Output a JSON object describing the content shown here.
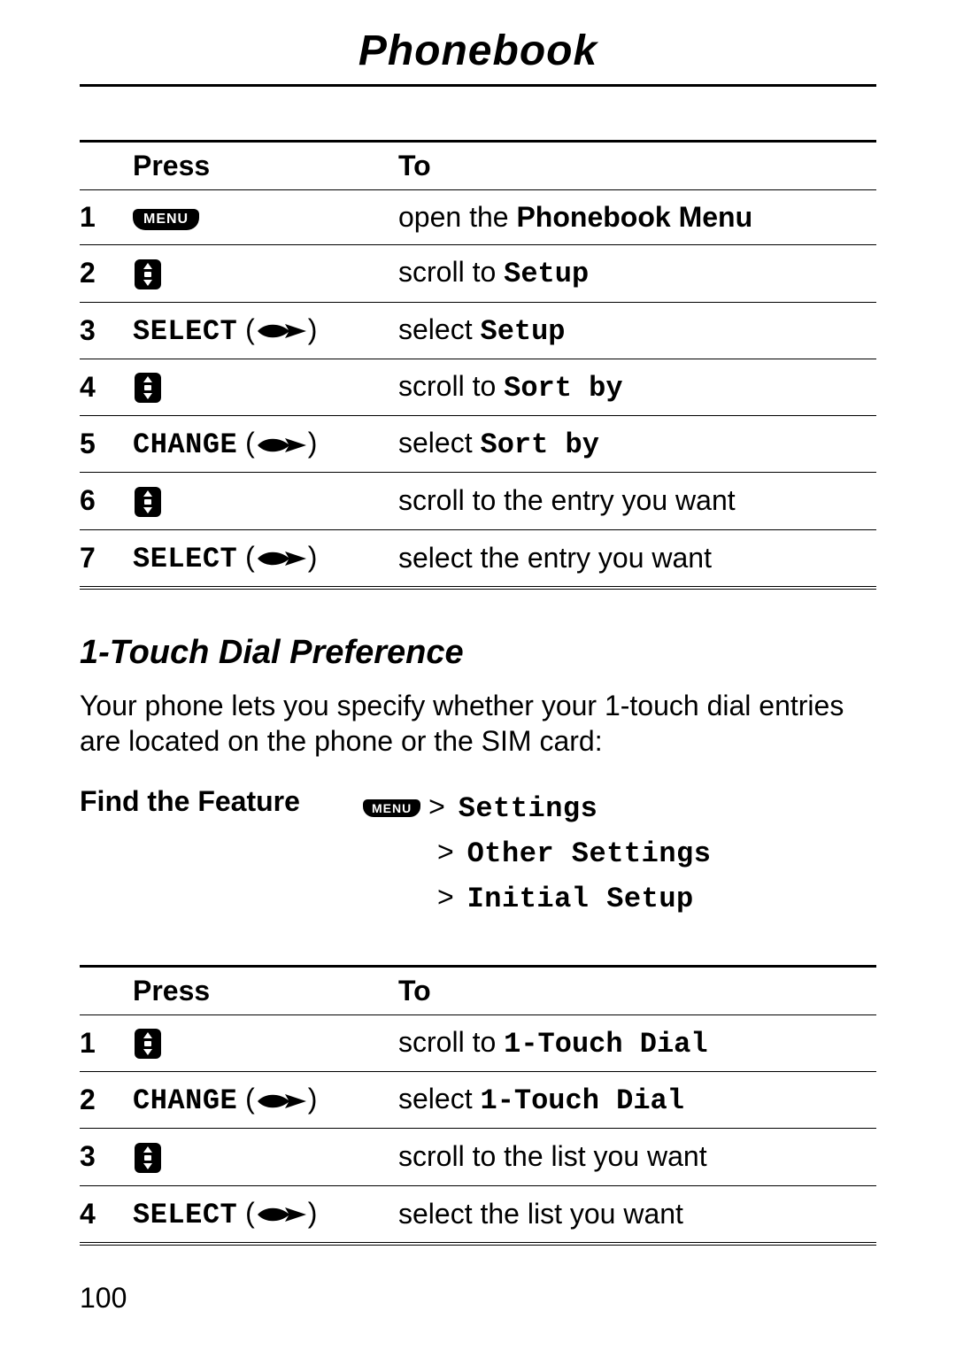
{
  "page_title": "Phonebook",
  "page_number": "100",
  "colors": {
    "text": "#000000",
    "bg": "#ffffff",
    "rule": "#000000"
  },
  "table1": {
    "headers": {
      "press": "Press",
      "to": "To"
    },
    "rows": [
      {
        "n": "1",
        "press_type": "menu",
        "press_label": "MENU",
        "to_prefix": "open the ",
        "to_bold": "Phonebook Menu",
        "to_suffix": ""
      },
      {
        "n": "2",
        "press_type": "scroll",
        "to_prefix": "scroll to ",
        "to_mono": "Setup",
        "to_suffix": ""
      },
      {
        "n": "3",
        "press_type": "soft",
        "press_word": "SELECT",
        "to_prefix": "select ",
        "to_mono": "Setup",
        "to_suffix": ""
      },
      {
        "n": "4",
        "press_type": "scroll",
        "to_prefix": "scroll to ",
        "to_mono": "Sort by",
        "to_suffix": ""
      },
      {
        "n": "5",
        "press_type": "soft",
        "press_word": "CHANGE",
        "to_prefix": "select ",
        "to_mono": "Sort by",
        "to_suffix": ""
      },
      {
        "n": "6",
        "press_type": "scroll",
        "to_prefix": "scroll to the entry you want",
        "to_mono": "",
        "to_suffix": ""
      },
      {
        "n": "7",
        "press_type": "soft",
        "press_word": "SELECT",
        "to_prefix": "select the entry you want",
        "to_mono": "",
        "to_suffix": ""
      }
    ]
  },
  "section_heading": "1-Touch Dial Preference",
  "body_text": "Your phone lets you specify whether your 1-touch dial entries are located on the phone or the SIM card:",
  "find_feature": {
    "label": "Find the Feature",
    "menu_label": "MENU",
    "crumbs": [
      "Settings",
      "Other Settings",
      "Initial Setup"
    ]
  },
  "table2": {
    "headers": {
      "press": "Press",
      "to": "To"
    },
    "rows": [
      {
        "n": "1",
        "press_type": "scroll",
        "to_prefix": "scroll to ",
        "to_mono": "1-Touch Dial",
        "to_suffix": ""
      },
      {
        "n": "2",
        "press_type": "soft",
        "press_word": "CHANGE",
        "to_prefix": "select ",
        "to_mono": "1-Touch Dial",
        "to_suffix": ""
      },
      {
        "n": "3",
        "press_type": "scroll",
        "to_prefix": "scroll to the list you want",
        "to_mono": "",
        "to_suffix": ""
      },
      {
        "n": "4",
        "press_type": "soft",
        "press_word": "SELECT",
        "to_prefix": "select the list you want",
        "to_mono": "",
        "to_suffix": ""
      }
    ]
  }
}
